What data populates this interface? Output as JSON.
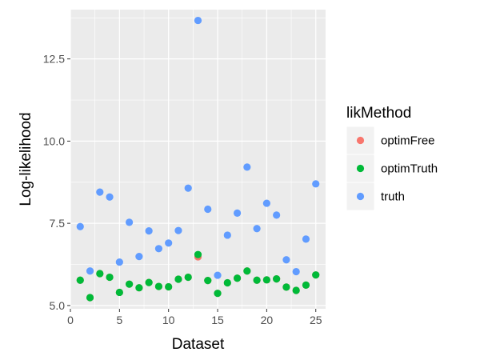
{
  "chart_data": {
    "type": "scatter",
    "xlabel": "Dataset",
    "ylabel": "Log-likelihood",
    "xlim": [
      0,
      26
    ],
    "ylim": [
      4.9,
      14
    ],
    "x_ticks": [
      0,
      5,
      10,
      15,
      20,
      25
    ],
    "x_tick_labels": [
      "0",
      "5",
      "10",
      "15",
      "20",
      "25"
    ],
    "y_ticks": [
      5.0,
      7.5,
      10.0,
      12.5
    ],
    "y_tick_labels": [
      "5.0",
      "7.5",
      "10.0",
      "12.5"
    ],
    "grid": true,
    "legend": {
      "title": "likMethod",
      "position": "right"
    },
    "series": [
      {
        "name": "optimFree",
        "color": "#F8766D",
        "x": [
          1,
          2,
          3,
          4,
          5,
          6,
          7,
          8,
          9,
          10,
          11,
          12,
          13,
          14,
          15,
          16,
          17,
          18,
          19,
          20,
          21,
          22,
          23,
          24,
          25
        ],
        "y": [
          5.77,
          5.24,
          5.97,
          5.86,
          5.4,
          5.65,
          5.54,
          5.7,
          5.58,
          5.57,
          5.8,
          5.86,
          6.48,
          5.76,
          5.37,
          5.69,
          5.83,
          6.05,
          5.77,
          5.78,
          5.81,
          5.56,
          5.46,
          5.62,
          5.93
        ]
      },
      {
        "name": "optimTruth",
        "color": "#00BA38",
        "x": [
          1,
          2,
          3,
          4,
          5,
          6,
          7,
          8,
          9,
          10,
          11,
          12,
          13,
          14,
          15,
          16,
          17,
          18,
          19,
          20,
          21,
          22,
          23,
          24,
          25
        ],
        "y": [
          5.77,
          5.24,
          5.97,
          5.86,
          5.4,
          5.65,
          5.54,
          5.7,
          5.58,
          5.57,
          5.8,
          5.86,
          6.55,
          5.76,
          5.37,
          5.69,
          5.83,
          6.05,
          5.77,
          5.78,
          5.81,
          5.56,
          5.46,
          5.62,
          5.93
        ]
      },
      {
        "name": "truth",
        "color": "#619CFF",
        "x": [
          1,
          2,
          3,
          4,
          5,
          6,
          7,
          8,
          9,
          10,
          11,
          12,
          13,
          14,
          15,
          16,
          17,
          18,
          19,
          20,
          21,
          22,
          23,
          24,
          25
        ],
        "y": [
          7.4,
          6.05,
          8.45,
          8.3,
          6.32,
          7.53,
          6.49,
          7.27,
          6.73,
          6.9,
          7.28,
          8.57,
          13.67,
          7.93,
          5.92,
          7.14,
          7.81,
          9.21,
          7.34,
          8.11,
          7.75,
          6.39,
          6.03,
          7.02,
          8.7
        ]
      }
    ]
  }
}
